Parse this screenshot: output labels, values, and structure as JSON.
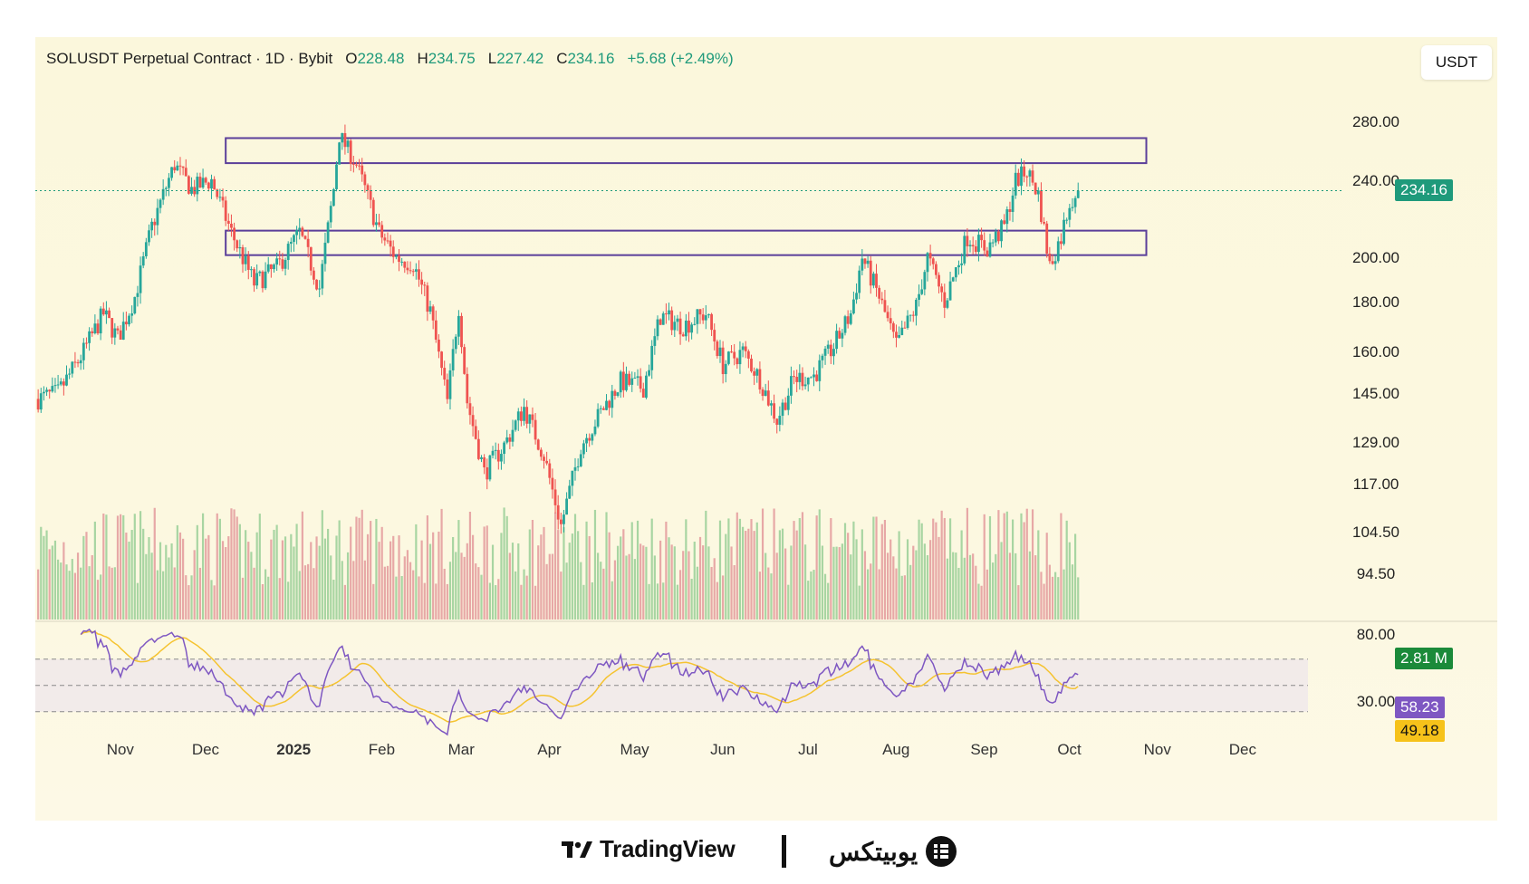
{
  "header": {
    "symbol": "SOLUSDT Perpetual Contract · 1D · Bybit",
    "o_label": "O",
    "o": "228.48",
    "h_label": "H",
    "h": "234.75",
    "l_label": "L",
    "l": "227.42",
    "c_label": "C",
    "c": "234.16",
    "change": "+5.68 (+2.49%)"
  },
  "currency_button": "USDT",
  "badges": {
    "price": "234.16",
    "volume": "2.81 M",
    "rsi": "58.23",
    "rsi_ma": "49.18"
  },
  "colors": {
    "up": "#26a69a",
    "down": "#ef5350",
    "zone": "#5b3f9a",
    "rsi_line": "#7e57c2",
    "rsi_ma": "#f5c330",
    "badge_price": "#1f9a7b",
    "badge_volume": "#1b8a3a",
    "badge_rsi": "#7e57c2",
    "badge_rsi_ma": "#f6c21a"
  },
  "chart_data": {
    "type": "candlestick",
    "symbol": "SOLUSDT",
    "interval": "1D",
    "price_axis": {
      "scale": "log",
      "ticks": [
        "280.00",
        "240.00",
        "200.00",
        "180.00",
        "160.00",
        "145.00",
        "129.00",
        "117.00",
        "104.50",
        "94.50"
      ]
    },
    "rsi_axis": {
      "ticks": [
        "80.00",
        "30.00"
      ],
      "band": [
        30,
        70
      ],
      "mid": 50
    },
    "time_axis": {
      "ticks": [
        "Nov",
        "Dec",
        "2025",
        "Feb",
        "Mar",
        "Apr",
        "May",
        "Jun",
        "Jul",
        "Aug",
        "Sep",
        "Oct",
        "Nov",
        "Dec"
      ],
      "bold": [
        "2025"
      ]
    },
    "zones": [
      {
        "from": "2024-12-10",
        "to": "2025-10-30",
        "low": 251,
        "high": 268
      },
      {
        "from": "2024-12-10",
        "to": "2025-10-30",
        "low": 201,
        "high": 213
      }
    ],
    "last_price": 234.16,
    "price_path": [
      [
        "2024-10-05",
        143
      ],
      [
        "2024-10-12",
        145
      ],
      [
        "2024-10-20",
        158
      ],
      [
        "2024-10-28",
        175
      ],
      [
        "2024-11-02",
        165
      ],
      [
        "2024-11-08",
        182
      ],
      [
        "2024-11-14",
        215
      ],
      [
        "2024-11-22",
        250
      ],
      [
        "2024-11-28",
        235
      ],
      [
        "2024-12-05",
        240
      ],
      [
        "2024-12-12",
        212
      ],
      [
        "2024-12-20",
        188
      ],
      [
        "2024-12-28",
        195
      ],
      [
        "2025-01-05",
        212
      ],
      [
        "2025-01-12",
        186
      ],
      [
        "2025-01-17",
        235
      ],
      [
        "2025-01-19",
        270
      ],
      [
        "2025-01-25",
        250
      ],
      [
        "2025-02-02",
        212
      ],
      [
        "2025-02-08",
        200
      ],
      [
        "2025-02-14",
        197
      ],
      [
        "2025-02-20",
        176
      ],
      [
        "2025-02-26",
        142
      ],
      [
        "2025-03-02",
        178
      ],
      [
        "2025-03-05",
        142
      ],
      [
        "2025-03-11",
        120
      ],
      [
        "2025-03-18",
        128
      ],
      [
        "2025-03-25",
        140
      ],
      [
        "2025-04-01",
        125
      ],
      [
        "2025-04-07",
        106
      ],
      [
        "2025-04-14",
        128
      ],
      [
        "2025-04-22",
        140
      ],
      [
        "2025-04-28",
        149
      ],
      [
        "2025-05-06",
        147
      ],
      [
        "2025-05-12",
        174
      ],
      [
        "2025-05-20",
        170
      ],
      [
        "2025-05-28",
        175
      ],
      [
        "2025-06-03",
        155
      ],
      [
        "2025-06-10",
        160
      ],
      [
        "2025-06-16",
        150
      ],
      [
        "2025-06-22",
        136
      ],
      [
        "2025-06-28",
        150
      ],
      [
        "2025-07-05",
        151
      ],
      [
        "2025-07-12",
        162
      ],
      [
        "2025-07-18",
        175
      ],
      [
        "2025-07-22",
        200
      ],
      [
        "2025-07-28",
        182
      ],
      [
        "2025-08-03",
        162
      ],
      [
        "2025-08-10",
        178
      ],
      [
        "2025-08-14",
        200
      ],
      [
        "2025-08-20",
        180
      ],
      [
        "2025-08-28",
        210
      ],
      [
        "2025-09-04",
        204
      ],
      [
        "2025-09-10",
        215
      ],
      [
        "2025-09-14",
        240
      ],
      [
        "2025-09-18",
        246
      ],
      [
        "2025-09-22",
        232
      ],
      [
        "2025-09-26",
        196
      ],
      [
        "2025-09-30",
        210
      ],
      [
        "2025-10-03",
        228
      ],
      [
        "2025-10-06",
        234.16
      ]
    ],
    "volume_last": "2.81 M",
    "rsi_last": 58.23,
    "rsi_ma_last": 49.18
  },
  "footer": {
    "tradingview": "TradingView",
    "ubitex": "یوبیتکس"
  }
}
